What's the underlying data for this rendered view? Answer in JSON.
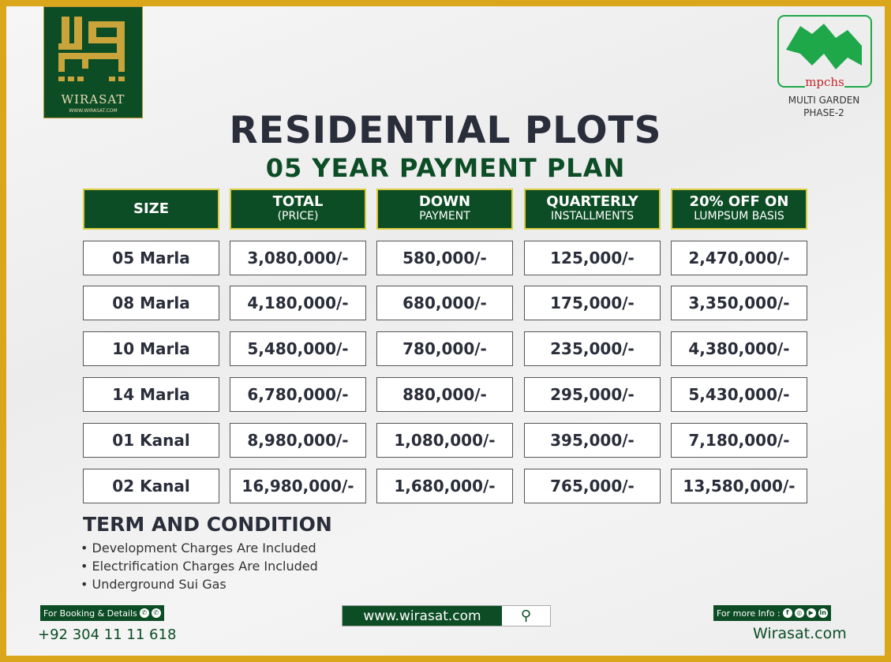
{
  "brand": {
    "name": "WIRASAT",
    "url": "WWW.WIRASAT.COM"
  },
  "partner": {
    "logo_text": "mpchs",
    "line1": "MULTI GARDEN",
    "line2": "PHASE-2"
  },
  "title": "RESIDENTIAL PLOTS",
  "subtitle": "05 YEAR PAYMENT PLAN",
  "headers": [
    {
      "a": "SIZE",
      "b": ""
    },
    {
      "a": "TOTAL",
      "b": "(PRICE)"
    },
    {
      "a": "DOWN",
      "b": "PAYMENT"
    },
    {
      "a": "QUARTERLY",
      "b": "INSTALLMENTS"
    },
    {
      "a": "20% OFF ON",
      "b": "LUMPSUM BASIS"
    }
  ],
  "rows": [
    [
      "05 Marla",
      "3,080,000/-",
      "580,000/-",
      "125,000/-",
      "2,470,000/-"
    ],
    [
      "08 Marla",
      "4,180,000/-",
      "680,000/-",
      "175,000/-",
      "3,350,000/-"
    ],
    [
      "10 Marla",
      "5,480,000/-",
      "780,000/-",
      "235,000/-",
      "4,380,000/-"
    ],
    [
      "14 Marla",
      "6,780,000/-",
      "880,000/-",
      "295,000/-",
      "5,430,000/-"
    ],
    [
      "01 Kanal",
      "8,980,000/-",
      "1,080,000/-",
      "395,000/-",
      "7,180,000/-"
    ],
    [
      "02 Kanal",
      "16,980,000/-",
      "1,680,000/-",
      "765,000/-",
      "13,580,000/-"
    ]
  ],
  "terms": {
    "title": "TERM AND CONDITION",
    "items": [
      "• Development Charges Are Included",
      "• Electrification Charges Are Included",
      "• Underground Sui Gas"
    ]
  },
  "footer": {
    "booking_label": "For Booking & Details",
    "phone": "+92 304 11 11 618",
    "search_url": "www.wirasat.com",
    "info_label": "For more Info :",
    "website": "Wirasat.com"
  },
  "colors": {
    "green": "#0d4d26",
    "gold": "#d9a61c",
    "text": "#2a2d3a"
  }
}
